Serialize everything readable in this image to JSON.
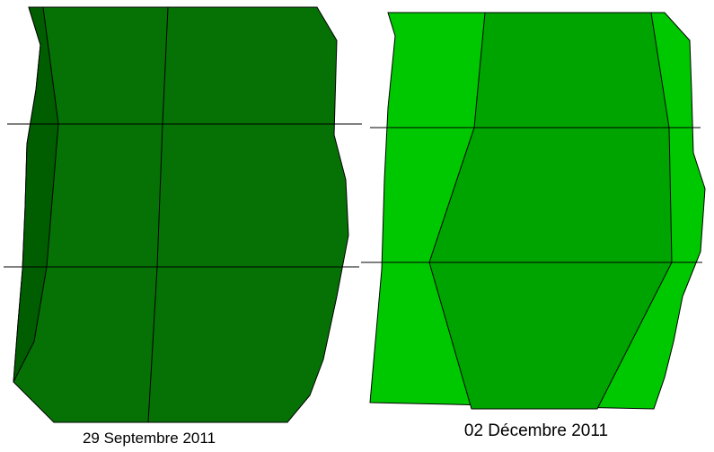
{
  "panels": [
    {
      "caption": "29 Septembre 2011"
    },
    {
      "caption": "02 Décembre 2011"
    }
  ]
}
